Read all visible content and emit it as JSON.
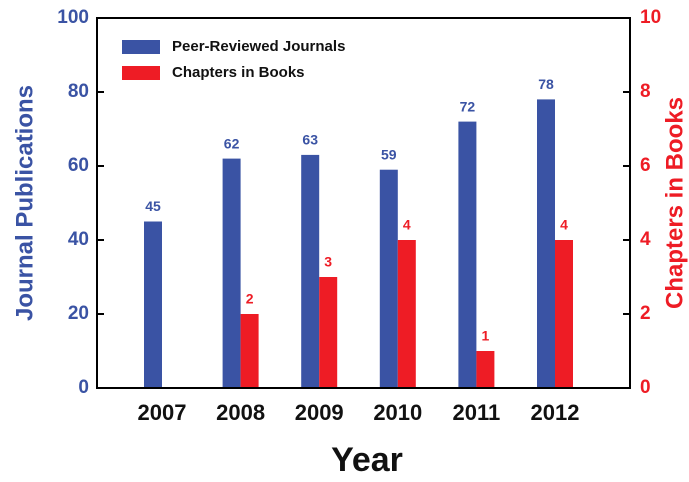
{
  "chart_data": {
    "type": "bar",
    "x_label": "Year",
    "y_label": "Journal Publications",
    "y2_label": "Chapters in Books",
    "categories": [
      "2007",
      "2008",
      "2009",
      "2010",
      "2011",
      "2012"
    ],
    "series": [
      {
        "name": "Peer-Reviewed Journals",
        "color": "#3a53a4",
        "values": [
          45,
          62,
          63,
          59,
          72,
          78
        ]
      },
      {
        "name": "Chapters in Books",
        "color": "#ee1c25",
        "axis": "y2",
        "values": [
          null,
          2,
          3,
          4,
          1,
          4
        ]
      }
    ],
    "ylim": [
      0,
      100
    ],
    "yticks": [
      0,
      20,
      40,
      60,
      80,
      100
    ],
    "y2lim": [
      0,
      10
    ],
    "y2ticks": [
      0,
      2,
      4,
      6,
      8,
      10
    ],
    "legend": "upper left"
  }
}
